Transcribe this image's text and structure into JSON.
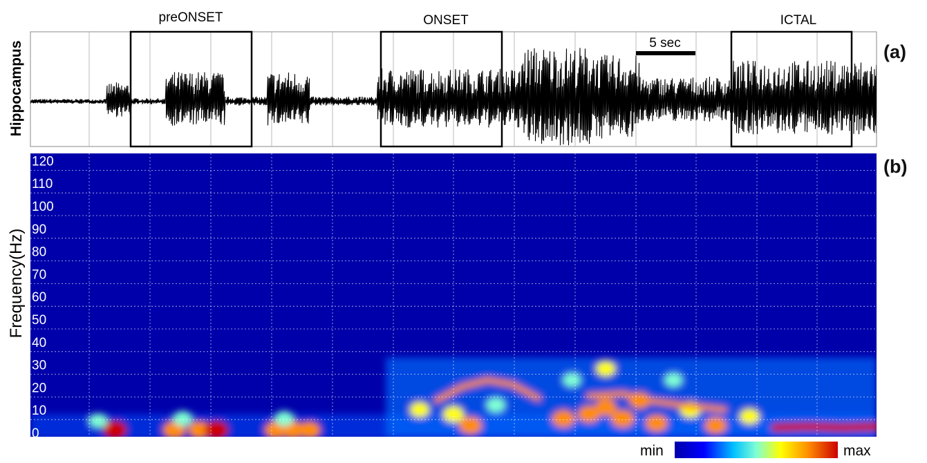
{
  "chart_data": [
    {
      "type": "line",
      "panel_label": "(a)",
      "ylabel": "Hippocampus",
      "scale_bar_label": "5 sec",
      "window_labels": [
        "preONSET",
        "ONSET",
        "ICTAL"
      ],
      "amplitude_profile": {
        "description_units": "relative amplitude 0-1",
        "segments": [
          {
            "from": 0.0,
            "to": 0.09,
            "level": 0.08
          },
          {
            "from": 0.09,
            "to": 0.12,
            "level": 0.35
          },
          {
            "from": 0.12,
            "to": 0.16,
            "level": 0.1
          },
          {
            "from": 0.16,
            "to": 0.23,
            "level": 0.55
          },
          {
            "from": 0.23,
            "to": 0.28,
            "level": 0.15
          },
          {
            "from": 0.28,
            "to": 0.33,
            "level": 0.55
          },
          {
            "from": 0.33,
            "to": 0.41,
            "level": 0.15
          },
          {
            "from": 0.41,
            "to": 0.58,
            "level": 0.6
          },
          {
            "from": 0.58,
            "to": 0.67,
            "level": 1.0
          },
          {
            "from": 0.67,
            "to": 0.72,
            "level": 0.85
          },
          {
            "from": 0.72,
            "to": 0.83,
            "level": 0.45
          },
          {
            "from": 0.83,
            "to": 1.0,
            "level": 0.75
          }
        ]
      }
    },
    {
      "type": "heatmap",
      "panel_label": "(b)",
      "ylabel": "Frequency(Hz)",
      "ylim": [
        0,
        125
      ],
      "yticks": [
        0,
        10,
        20,
        30,
        40,
        50,
        60,
        70,
        80,
        90,
        100,
        110,
        120
      ],
      "colorbar": {
        "min_label": "min",
        "max_label": "max"
      },
      "grid": true,
      "colors": [
        "#00008b",
        "#0000ff",
        "#00bfff",
        "#7fffd4",
        "#ffff00",
        "#ff8c00",
        "#cc0000"
      ],
      "power_blobs": [
        {
          "t": 0.1,
          "f": 3,
          "p": 0.95
        },
        {
          "t": 0.17,
          "f": 3,
          "p": 0.9
        },
        {
          "t": 0.2,
          "f": 3,
          "p": 0.85
        },
        {
          "t": 0.22,
          "f": 3,
          "p": 0.95
        },
        {
          "t": 0.29,
          "f": 3,
          "p": 0.85
        },
        {
          "t": 0.31,
          "f": 3,
          "p": 0.9
        },
        {
          "t": 0.33,
          "f": 3,
          "p": 0.8
        },
        {
          "t": 0.08,
          "f": 7,
          "p": 0.45
        },
        {
          "t": 0.18,
          "f": 8,
          "p": 0.5
        },
        {
          "t": 0.3,
          "f": 8,
          "p": 0.5
        },
        {
          "t": 0.46,
          "f": 12,
          "p": 0.6
        },
        {
          "t": 0.5,
          "f": 10,
          "p": 0.7
        },
        {
          "t": 0.52,
          "f": 5,
          "p": 0.85
        },
        {
          "t": 0.55,
          "f": 14,
          "p": 0.55
        },
        {
          "t": 0.63,
          "f": 8,
          "p": 0.85
        },
        {
          "t": 0.66,
          "f": 10,
          "p": 0.8
        },
        {
          "t": 0.68,
          "f": 13,
          "p": 0.75
        },
        {
          "t": 0.7,
          "f": 8,
          "p": 0.9
        },
        {
          "t": 0.72,
          "f": 16,
          "p": 0.75
        },
        {
          "t": 0.74,
          "f": 6,
          "p": 0.8
        },
        {
          "t": 0.78,
          "f": 12,
          "p": 0.7
        },
        {
          "t": 0.81,
          "f": 5,
          "p": 0.75
        },
        {
          "t": 0.85,
          "f": 9,
          "p": 0.6
        },
        {
          "t": 0.68,
          "f": 30,
          "p": 0.6
        },
        {
          "t": 0.64,
          "f": 25,
          "p": 0.45
        },
        {
          "t": 0.76,
          "f": 25,
          "p": 0.45
        }
      ],
      "ridges": [
        {
          "name": "onset-arc",
          "points": [
            [
              0.48,
              16
            ],
            [
              0.51,
              22
            ],
            [
              0.54,
              25
            ],
            [
              0.57,
              23
            ],
            [
              0.6,
              17
            ]
          ],
          "p": 0.75
        },
        {
          "name": "mid-band",
          "points": [
            [
              0.66,
              18
            ],
            [
              0.7,
              19
            ],
            [
              0.73,
              16
            ],
            [
              0.77,
              14
            ],
            [
              0.82,
              12
            ]
          ],
          "p": 0.8
        },
        {
          "name": "ictal-band",
          "points": [
            [
              0.88,
              4
            ],
            [
              0.92,
              4.5
            ],
            [
              0.96,
              4
            ],
            [
              1.0,
              4.5
            ]
          ],
          "p": 1.0
        }
      ]
    }
  ]
}
